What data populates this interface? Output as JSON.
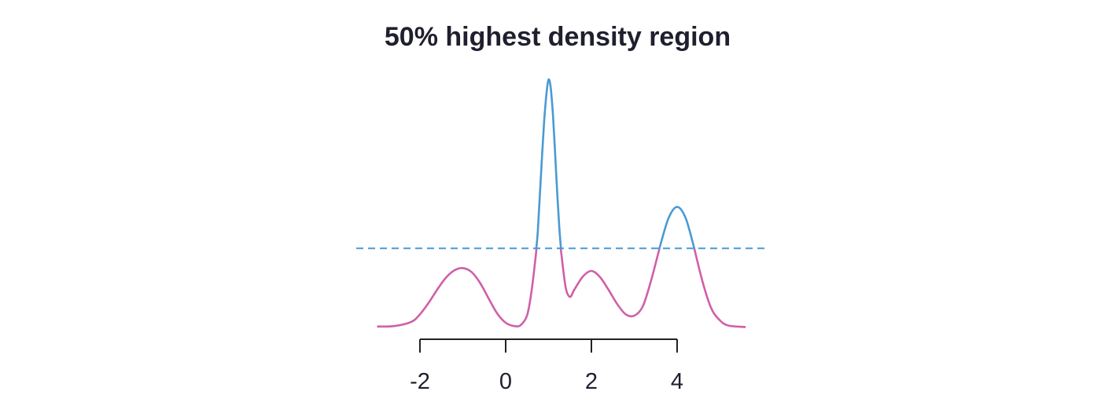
{
  "chart_data": {
    "type": "line",
    "title": "50% highest density region",
    "xlabel": "",
    "ylabel": "",
    "xlim": [
      -3.3,
      5.8
    ],
    "ylim": [
      0,
      0.58
    ],
    "x_ticks": [
      -2,
      0,
      2,
      4
    ],
    "x_tick_labels": [
      "-2",
      "0",
      "2",
      "4"
    ],
    "threshold": 0.168,
    "colors": {
      "inside_region": "#4a9ad4",
      "outside_region": "#d05fa8",
      "threshold_line": "#4a9ad4",
      "axis": "#222222"
    },
    "series": [
      {
        "x": [
          -3.0,
          -2.6,
          -2.2,
          -2.0,
          -1.8,
          -1.6,
          -1.4,
          -1.2,
          -1.0,
          -0.8,
          -0.6,
          -0.4,
          -0.2,
          0.0,
          0.2,
          0.35,
          0.5,
          0.6,
          0.7,
          0.75,
          0.8,
          0.85,
          0.9,
          0.95,
          1.0,
          1.05,
          1.1,
          1.15,
          1.2,
          1.25,
          1.3,
          1.4,
          1.5,
          1.6,
          1.8,
          2.0,
          2.2,
          2.4,
          2.6,
          2.8,
          3.0,
          3.2,
          3.4,
          3.6,
          3.8,
          4.0,
          4.2,
          4.4,
          4.6,
          4.8,
          5.0,
          5.2,
          5.6
        ],
        "y": [
          0.002,
          0.003,
          0.012,
          0.028,
          0.052,
          0.08,
          0.105,
          0.121,
          0.126,
          0.118,
          0.095,
          0.062,
          0.03,
          0.01,
          0.003,
          0.005,
          0.026,
          0.075,
          0.15,
          0.205,
          0.285,
          0.365,
          0.44,
          0.495,
          0.526,
          0.51,
          0.455,
          0.375,
          0.29,
          0.215,
          0.155,
          0.085,
          0.065,
          0.08,
          0.108,
          0.12,
          0.107,
          0.08,
          0.05,
          0.028,
          0.025,
          0.045,
          0.102,
          0.172,
          0.232,
          0.256,
          0.232,
          0.168,
          0.095,
          0.04,
          0.015,
          0.004,
          0.001
        ]
      }
    ]
  }
}
